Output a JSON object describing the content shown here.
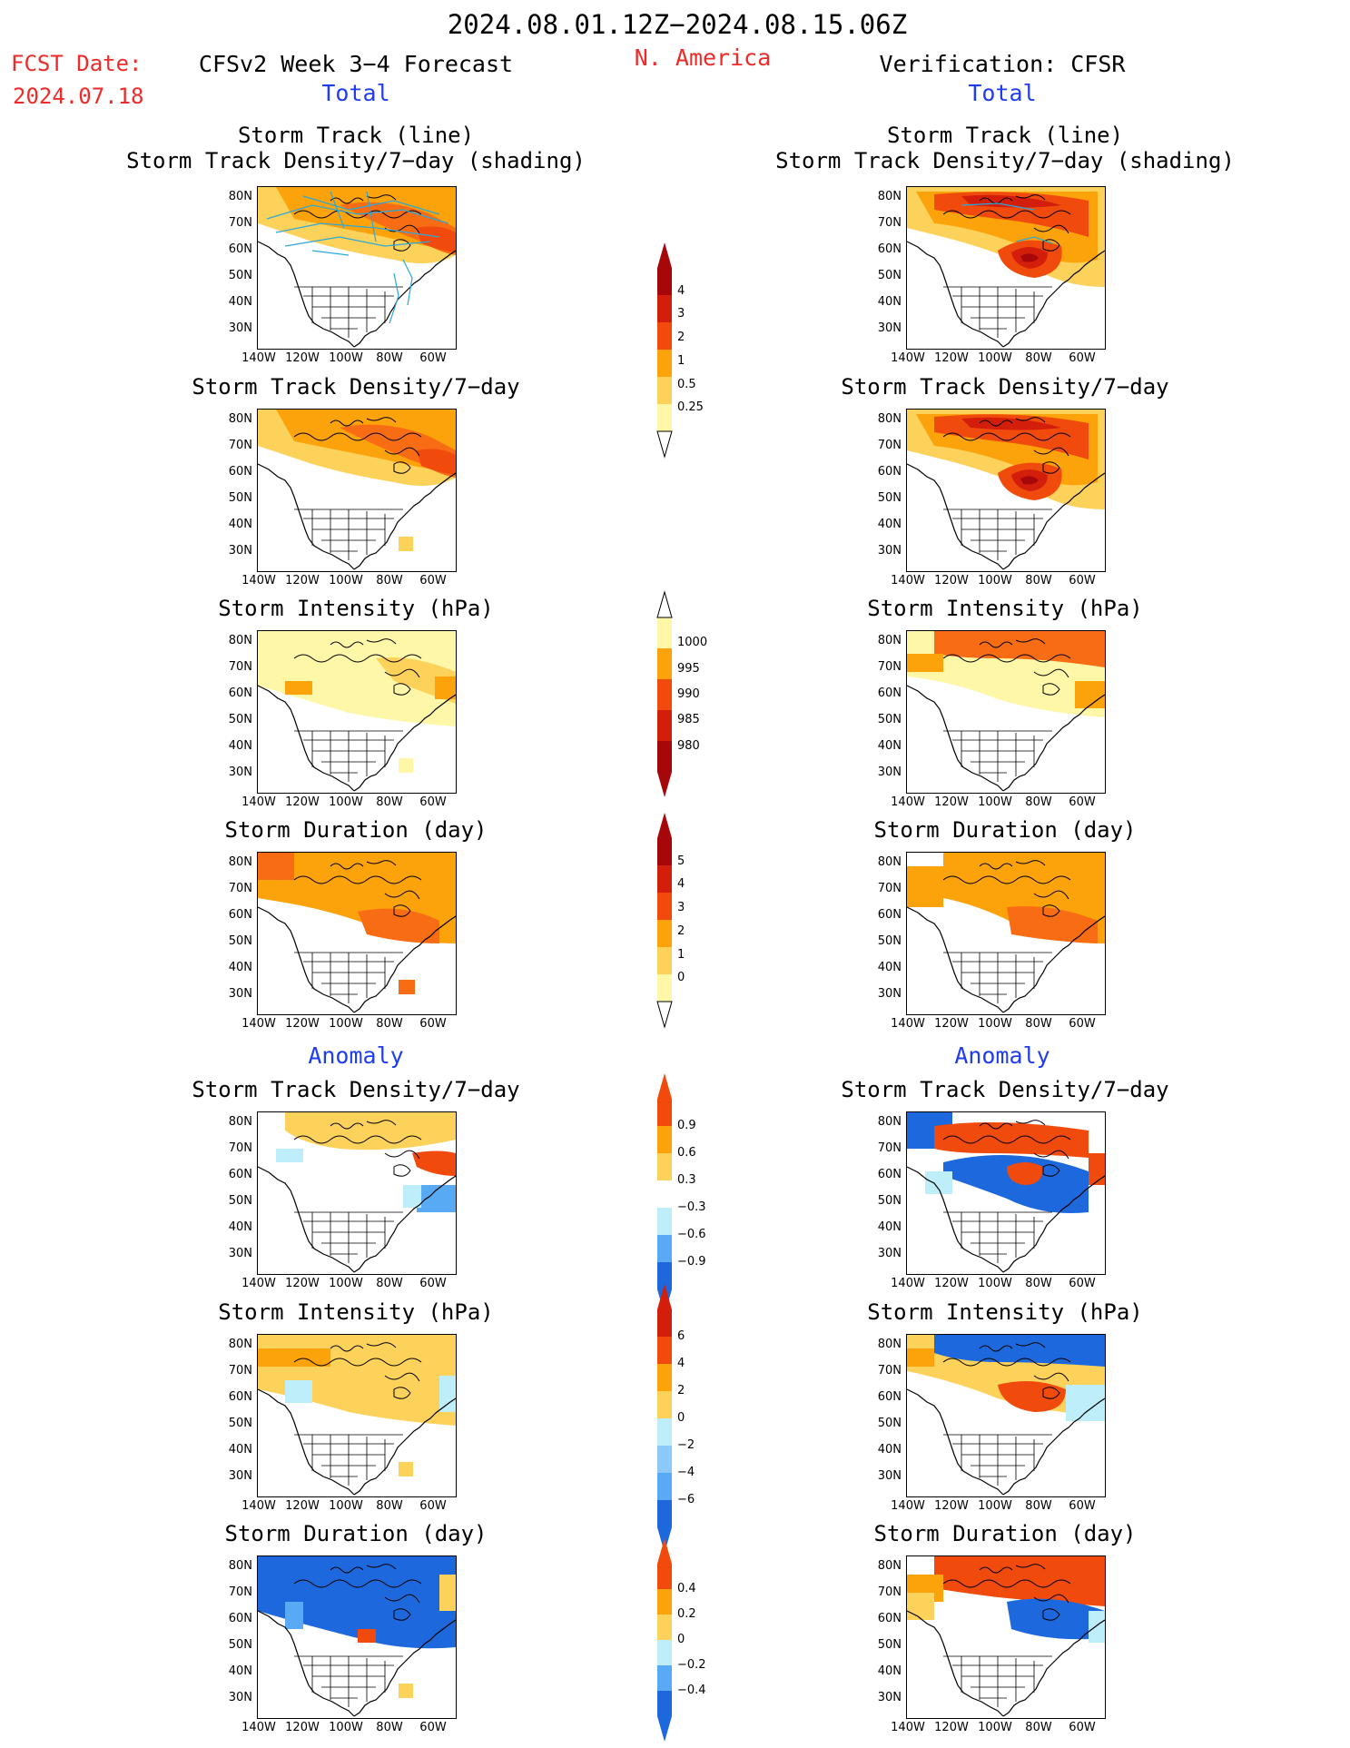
{
  "header": {
    "date_range": "2024.08.01.12Z−2024.08.15.06Z",
    "region": "N. America",
    "fcst_label": "FCST Date:",
    "fcst_date": "2024.07.18",
    "left_title": "CFSv2 Week 3−4 Forecast",
    "right_title": "Verification: CFSR",
    "total_label": "Total",
    "anomaly_label": "Anomaly"
  },
  "axes": {
    "lat_labels": [
      "80N",
      "70N",
      "60N",
      "50N",
      "40N",
      "30N"
    ],
    "lon_labels": [
      "140W",
      "120W",
      "100W",
      "80W",
      "60W"
    ]
  },
  "colors": {
    "pale_yellow": "#fff7a8",
    "light_orange": "#fdd25a",
    "orange": "#fca30c",
    "dark_orange": "#f86d14",
    "red_orange": "#f04a0c",
    "red": "#d21e0a",
    "dark_red": "#a5070a",
    "light_blue": "#bdeefa",
    "blue": "#58aaf5",
    "dark_blue": "#1c68dc",
    "track_line": "#2aa8d8"
  },
  "panels": [
    {
      "title": "Storm Track (line)",
      "subtitle": "Storm Track Density/7−day (shading)",
      "side": "left",
      "scheme": "forecast-track"
    },
    {
      "title": "Storm Track (line)",
      "subtitle": "Storm Track Density/7−day (shading)",
      "side": "right",
      "scheme": "verif-track"
    },
    {
      "title": "Storm Track Density/7−day",
      "side": "left",
      "scheme": "forecast-density"
    },
    {
      "title": "Storm Track Density/7−day",
      "side": "right",
      "scheme": "verif-density"
    },
    {
      "title": "Storm Intensity (hPa)",
      "side": "left",
      "scheme": "forecast-intensity"
    },
    {
      "title": "Storm Intensity (hPa)",
      "side": "right",
      "scheme": "verif-intensity"
    },
    {
      "title": "Storm Duration (day)",
      "side": "left",
      "scheme": "forecast-duration"
    },
    {
      "title": "Storm Duration (day)",
      "side": "right",
      "scheme": "verif-duration"
    },
    {
      "title": "Storm Track Density/7−day",
      "side": "left",
      "scheme": "forecast-density-anom"
    },
    {
      "title": "Storm Track Density/7−day",
      "side": "right",
      "scheme": "verif-density-anom"
    },
    {
      "title": "Storm Intensity (hPa)",
      "side": "left",
      "scheme": "forecast-intensity-anom"
    },
    {
      "title": "Storm Intensity (hPa)",
      "side": "right",
      "scheme": "verif-intensity-anom"
    },
    {
      "title": "Storm Duration (day)",
      "side": "left",
      "scheme": "forecast-duration-anom"
    },
    {
      "title": "Storm Duration (day)",
      "side": "right",
      "scheme": "verif-duration-anom"
    }
  ],
  "colorbars": [
    {
      "name": "density",
      "labels": [
        "4",
        "3",
        "2",
        "1",
        "0.5",
        "0.25"
      ],
      "colors": [
        "#a5070a",
        "#d21e0a",
        "#f04a0c",
        "#fca30c",
        "#fdd25a",
        "#fff7a8"
      ],
      "ends": "top-arrow"
    },
    {
      "name": "intensity",
      "labels": [
        "1000",
        "995",
        "990",
        "985",
        "980"
      ],
      "colors": [
        "#fff7a8",
        "#fca30c",
        "#f04a0c",
        "#d21e0a",
        "#a5070a"
      ],
      "ends": "bottom-arrow"
    },
    {
      "name": "duration",
      "labels": [
        "5",
        "4",
        "3",
        "2",
        "1",
        "0"
      ],
      "colors": [
        "#a5070a",
        "#d21e0a",
        "#f04a0c",
        "#fca30c",
        "#fdd25a",
        "#fff7a8"
      ],
      "ends": "top-arrow"
    },
    {
      "name": "density-anom",
      "labels": [
        "0.9",
        "0.6",
        "0.3",
        "−0.3",
        "−0.6",
        "−0.9"
      ],
      "colors": [
        "#f04a0c",
        "#fca30c",
        "#fdd25a",
        "#ffffff",
        "#bdeefa",
        "#58aaf5",
        "#1c68dc"
      ],
      "ends": "both"
    },
    {
      "name": "intensity-anom",
      "labels": [
        "6",
        "4",
        "2",
        "0",
        "−2",
        "−4",
        "−6"
      ],
      "colors": [
        "#d21e0a",
        "#f04a0c",
        "#fca30c",
        "#fdd25a",
        "#bdeefa",
        "#8cc8f8",
        "#58aaf5",
        "#1c68dc"
      ],
      "ends": "both"
    },
    {
      "name": "duration-anom",
      "labels": [
        "0.4",
        "0.2",
        "0",
        "−0.2",
        "−0.4"
      ],
      "colors": [
        "#f04a0c",
        "#fca30c",
        "#fdd25a",
        "#bdeefa",
        "#58aaf5",
        "#1c68dc"
      ],
      "ends": "both"
    }
  ]
}
